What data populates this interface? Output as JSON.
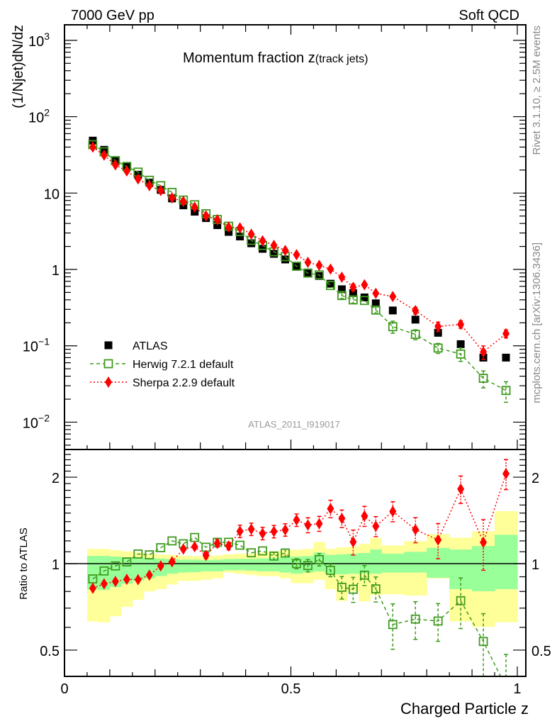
{
  "header": {
    "left": "7000 GeV pp",
    "right": "Soft QCD",
    "side_top": "Rivet 3.1.10, ≥ 2.5M events",
    "side_bottom": "mcplots.cern.ch [arXiv:1306.3436]"
  },
  "chart_data": {
    "type": "scatter",
    "title": "Momentum fraction z",
    "title_sub": "(track jets)",
    "analysis_label": "ATLAS_2011_I919017",
    "xlabel": "Charged Particle z",
    "ylabel": "(1/Njet)dN/dz",
    "ratio_ylabel": "Ratio to ATLAS",
    "xlim": [
      0,
      1.0188
    ],
    "ylim_log10": [
      -2.358,
      3.203
    ],
    "ratio_ylim": [
      0.405,
      2.497
    ],
    "yscale": "log",
    "ratio_scale": "log",
    "x_tick_labels": [
      {
        "v": 0,
        "t": "0"
      },
      {
        "v": 0.5,
        "t": "0.5"
      },
      {
        "v": 1,
        "t": "1"
      }
    ],
    "y_tick_labels": [
      {
        "exp": 3,
        "base": "10",
        "sup": "3"
      },
      {
        "exp": 2,
        "base": "10",
        "sup": "2"
      },
      {
        "exp": 1,
        "base": "10",
        "sup": ""
      },
      {
        "exp": 0,
        "base": "1",
        "sup": ""
      },
      {
        "exp": -1,
        "base": "10",
        "sup": "−1"
      },
      {
        "exp": -2,
        "base": "10",
        "sup": "−2"
      }
    ],
    "ratio_tick_labels": [
      {
        "v": 0.5,
        "t": "0.5"
      },
      {
        "v": 1,
        "t": "1"
      },
      {
        "v": 2,
        "t": "2"
      }
    ],
    "legend_placement": "bottom-left",
    "bin_edges": [
      0.05,
      0.075,
      0.1,
      0.125,
      0.15,
      0.175,
      0.2,
      0.225,
      0.25,
      0.275,
      0.3,
      0.325,
      0.35,
      0.375,
      0.4,
      0.425,
      0.45,
      0.475,
      0.5,
      0.525,
      0.55,
      0.575,
      0.6,
      0.625,
      0.65,
      0.675,
      0.7,
      0.75,
      0.8,
      0.85,
      0.9,
      0.95,
      1.0
    ],
    "series": [
      {
        "name": "ATLAS",
        "style": "data",
        "color": "#000000",
        "values": [
          48.6,
          36.8,
          27,
          22,
          17.4,
          13.7,
          11,
          8.5,
          6.9,
          5.7,
          4.7,
          3.8,
          3.1,
          2.7,
          2.2,
          1.86,
          1.6,
          1.35,
          1.1,
          0.91,
          0.82,
          0.65,
          0.55,
          0.49,
          0.43,
          0.36,
          0.29,
          0.22,
          0.148,
          0.105,
          0.07,
          0.07
        ]
      },
      {
        "name": "Herwig 7.2.1 default",
        "style": "herwig",
        "color": "#3f9a1e",
        "values": [
          43.0,
          34.7,
          26.5,
          22.3,
          18.8,
          14.7,
          12.5,
          10.2,
          8.09,
          7.03,
          5.36,
          4.51,
          3.68,
          3.13,
          2.4,
          2.06,
          1.7,
          1.47,
          1.1,
          0.896,
          0.847,
          0.616,
          0.455,
          0.399,
          0.392,
          0.294,
          0.178,
          0.141,
          0.0934,
          0.078,
          0.0375,
          0.026
        ],
        "rel_err": [
          0.01,
          0.01,
          0.01,
          0.01,
          0.01,
          0.01,
          0.01,
          0.01,
          0.01,
          0.01,
          0.015,
          0.015,
          0.015,
          0.02,
          0.02,
          0.02,
          0.03,
          0.03,
          0.04,
          0.05,
          0.05,
          0.05,
          0.09,
          0.1,
          0.08,
          0.1,
          0.18,
          0.15,
          0.15,
          0.2,
          0.25,
          0.3
        ]
      },
      {
        "name": "Sherpa 2.2.9 default",
        "style": "sherpa",
        "color": "#ff0000",
        "values": [
          39.9,
          31.3,
          23.4,
          19.4,
          15.3,
          12.5,
          10.8,
          8.63,
          7.76,
          6.53,
          5.02,
          4.47,
          3.57,
          3.5,
          2.9,
          2.37,
          2.07,
          1.77,
          1.56,
          1.24,
          1.13,
          1.01,
          0.79,
          0.583,
          0.63,
          0.486,
          0.441,
          0.289,
          0.179,
          0.191,
          0.083,
          0.144
        ],
        "rel_err": [
          0.01,
          0.01,
          0.01,
          0.01,
          0.01,
          0.01,
          0.015,
          0.015,
          0.02,
          0.02,
          0.025,
          0.03,
          0.03,
          0.05,
          0.05,
          0.05,
          0.05,
          0.05,
          0.05,
          0.06,
          0.06,
          0.07,
          0.07,
          0.1,
          0.08,
          0.08,
          0.08,
          0.1,
          0.14,
          0.11,
          0.2,
          0.12
        ]
      }
    ],
    "band_total": {
      "color": "#ffff99",
      "upper": [
        1.125,
        1.125,
        1.114,
        1.104,
        1.093,
        1.083,
        1.077,
        1.073,
        1.066,
        1.062,
        1.058,
        1.068,
        1.077,
        1.083,
        1.083,
        1.093,
        1.104,
        1.114,
        1.118,
        1.125,
        1.19,
        1.125,
        1.139,
        1.146,
        1.172,
        1.229,
        1.157,
        1.197,
        1.267,
        1.232,
        1.296,
        1.523
      ],
      "lower": [
        0.629,
        0.624,
        0.656,
        0.707,
        0.748,
        0.8,
        0.815,
        0.846,
        0.871,
        0.871,
        0.879,
        0.888,
        0.931,
        0.922,
        0.913,
        0.905,
        0.905,
        0.888,
        0.855,
        0.855,
        0.879,
        0.815,
        0.742,
        0.8,
        0.739,
        0.777,
        0.782,
        0.774,
        0.888,
        0.629,
        0.602,
        0.625
      ]
    },
    "band_stat": {
      "color": "#99ff99",
      "upper": [
        1.064,
        1.064,
        1.058,
        1.052,
        1.048,
        1.045,
        1.041,
        1.037,
        1.033,
        1.033,
        1.029,
        1.033,
        1.037,
        1.039,
        1.039,
        1.043,
        1.048,
        1.052,
        1.058,
        1.062,
        1.093,
        1.073,
        1.077,
        1.083,
        1.089,
        1.12,
        1.083,
        1.099,
        1.135,
        1.12,
        1.152,
        1.26
      ],
      "lower": [
        0.812,
        0.809,
        0.829,
        0.851,
        0.871,
        0.888,
        0.905,
        0.922,
        0.931,
        0.934,
        0.94,
        0.94,
        0.948,
        0.948,
        0.945,
        0.94,
        0.94,
        0.931,
        0.922,
        0.931,
        0.94,
        0.922,
        0.918,
        0.922,
        0.922,
        0.922,
        0.931,
        0.931,
        0.893,
        0.815,
        0.801,
        0.815
      ]
    }
  }
}
